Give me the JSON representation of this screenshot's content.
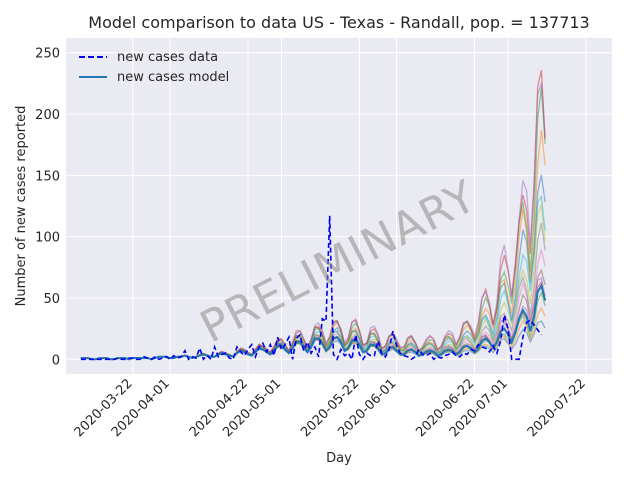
{
  "chart_data": {
    "type": "line",
    "title": "Model comparison to data US - Texas - Randall, pop. = 137713",
    "xlabel": "Day",
    "ylabel": "Number of new cases reported",
    "watermark": "PRELIMINARY",
    "x_start": "2020-03-08",
    "x_end": "2020-07-26",
    "xlim": [
      "2020-03-04",
      "2020-07-29"
    ],
    "ylim": [
      -12,
      262
    ],
    "yticks": [
      0,
      50,
      100,
      150,
      200,
      250
    ],
    "xticks": [
      "2020-03-22",
      "2020-04-01",
      "2020-04-22",
      "2020-05-01",
      "2020-05-22",
      "2020-06-01",
      "2020-06-22",
      "2020-07-01",
      "2020-07-22"
    ],
    "grid": true,
    "legend": {
      "position": "top-left",
      "entries": [
        "new cases data",
        "new cases model"
      ]
    },
    "series": [
      {
        "name": "new cases data",
        "style": "dashed",
        "color": "#0000ee",
        "values": [
          0,
          0,
          0,
          0,
          0,
          0,
          0,
          0,
          0,
          0,
          1,
          0,
          0,
          1,
          1,
          0,
          0,
          2,
          1,
          0,
          2,
          0,
          1,
          2,
          0,
          3,
          1,
          2,
          7,
          0,
          2,
          1,
          9,
          0,
          3,
          0,
          10,
          2,
          4,
          5,
          1,
          0,
          10,
          6,
          3,
          8,
          12,
          2,
          10,
          13,
          6,
          12,
          3,
          18,
          8,
          12,
          18,
          0,
          17,
          20,
          7,
          14,
          5,
          10,
          2,
          33,
          31,
          117,
          4,
          0,
          8,
          3,
          5,
          0,
          20,
          4,
          0,
          5,
          3,
          3,
          15,
          5,
          2,
          8,
          23,
          11,
          5,
          3,
          2,
          0,
          2,
          8,
          4,
          3,
          5,
          0,
          2,
          1,
          3,
          4,
          6,
          3,
          2,
          5,
          4,
          8,
          7,
          12,
          10,
          9,
          6,
          11,
          5,
          15,
          36,
          25,
          0,
          0,
          0,
          18,
          30,
          32,
          28,
          24,
          20
        ]
      },
      {
        "name": "new cases model",
        "style": "solid",
        "color": "#1f77b4",
        "values": [
          1,
          1,
          1,
          0,
          0,
          1,
          1,
          1,
          0,
          0,
          1,
          1,
          1,
          0,
          1,
          1,
          1,
          1,
          1,
          0,
          1,
          2,
          2,
          2,
          1,
          1,
          2,
          2,
          3,
          2,
          1,
          2,
          3,
          4,
          3,
          2,
          2,
          4,
          5,
          4,
          3,
          2,
          5,
          7,
          6,
          4,
          3,
          6,
          9,
          8,
          6,
          4,
          7,
          11,
          11,
          8,
          5,
          9,
          14,
          14,
          10,
          6,
          10,
          17,
          17,
          13,
          7,
          10,
          17,
          18,
          14,
          7,
          9,
          15,
          16,
          12,
          6,
          7,
          12,
          12,
          9,
          4,
          5,
          9,
          10,
          7,
          4,
          4,
          7,
          8,
          6,
          3,
          4,
          6,
          7,
          6,
          3,
          4,
          7,
          8,
          7,
          4,
          6,
          10,
          11,
          9,
          6,
          9,
          15,
          17,
          14,
          9,
          14,
          23,
          25,
          20,
          14,
          22,
          33,
          40,
          35,
          23,
          35,
          55,
          60,
          48
        ]
      }
    ],
    "ensemble_colors": [
      "#1f77b4",
      "#ff7f0e",
      "#2ca02c",
      "#d62728",
      "#9467bd",
      "#8c564b",
      "#e377c2",
      "#7f7f7f",
      "#bcbd22",
      "#17becf"
    ],
    "ensemble_scales": [
      0.55,
      0.7,
      0.85,
      1.0,
      1.15,
      1.3,
      1.5,
      1.75,
      2.05,
      2.35,
      2.7,
      3.1,
      3.5,
      3.9,
      4.05
    ]
  }
}
